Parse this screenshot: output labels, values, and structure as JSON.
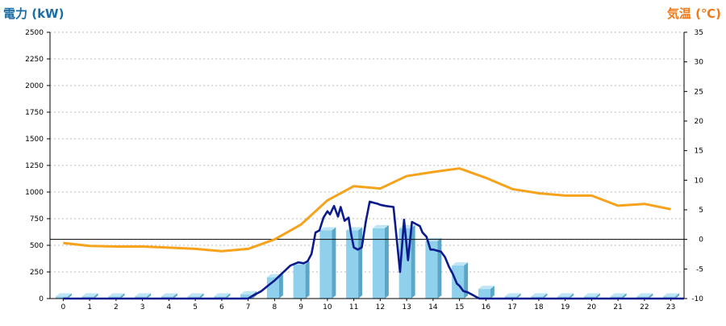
{
  "labels": {
    "left_axis_title": "電力 (kW)",
    "right_axis_title": "気温 (℃)"
  },
  "colors": {
    "left_title": "#1a6ea8",
    "right_title": "#f07a1a",
    "bar_front": "#8fd0ec",
    "bar_side": "#5aa6c8",
    "bar_top": "#bfe6f6",
    "power_line": "#0b1a8c",
    "temp_line": "#f7a21b",
    "grid": "#bbbbbb"
  },
  "chart_data": {
    "type": "bar",
    "categories": [
      "0",
      "1",
      "2",
      "3",
      "4",
      "5",
      "6",
      "7",
      "8",
      "9",
      "10",
      "11",
      "12",
      "13",
      "14",
      "15",
      "16",
      "17",
      "18",
      "19",
      "20",
      "21",
      "22",
      "23"
    ],
    "ylim_left": [
      0,
      2500
    ],
    "yticks_left": [
      0,
      250,
      500,
      750,
      1000,
      1250,
      1500,
      1750,
      2000,
      2250,
      2500
    ],
    "ylim_right": [
      -10,
      35
    ],
    "yticks_right": [
      -10,
      -5,
      0,
      5,
      10,
      15,
      20,
      25,
      30,
      35
    ],
    "grid": true,
    "zero_line_right": 0,
    "series": [
      {
        "kind": "bar",
        "axis": "left",
        "values": [
          20,
          20,
          20,
          20,
          20,
          20,
          20,
          40,
          200,
          320,
          640,
          640,
          660,
          660,
          540,
          310,
          90,
          20,
          20,
          20,
          20,
          20,
          20,
          20
        ]
      },
      {
        "kind": "line",
        "axis": "left",
        "x": [
          0,
          7,
          7.2,
          7.5,
          7.8,
          8,
          8.3,
          8.6,
          8.9,
          9.1,
          9.25,
          9.4,
          9.55,
          9.7,
          9.85,
          10,
          10.1,
          10.25,
          10.4,
          10.5,
          10.65,
          10.8,
          10.9,
          11,
          11.15,
          11.3,
          11.45,
          11.6,
          11.75,
          11.9,
          12,
          12.2,
          12.5,
          12.75,
          12.9,
          13.05,
          13.2,
          13.35,
          13.5,
          13.6,
          13.75,
          13.9,
          14,
          14.15,
          14.3,
          14.45,
          14.6,
          14.75,
          14.9,
          15,
          15.15,
          15.3,
          15.45,
          15.6,
          15.75,
          15.9,
          16,
          16.2,
          16.5,
          17,
          23.5
        ],
        "values": [
          0,
          0,
          30,
          70,
          130,
          170,
          240,
          310,
          340,
          330,
          350,
          420,
          620,
          640,
          760,
          820,
          790,
          870,
          770,
          860,
          730,
          760,
          600,
          480,
          460,
          480,
          720,
          910,
          900,
          890,
          880,
          870,
          860,
          250,
          740,
          360,
          720,
          700,
          680,
          620,
          580,
          460,
          460,
          450,
          440,
          390,
          300,
          230,
          140,
          120,
          70,
          60,
          40,
          20,
          0,
          0,
          0,
          0,
          0,
          0,
          0
        ]
      },
      {
        "kind": "line",
        "axis": "right",
        "x": [
          0,
          1,
          2,
          3,
          4,
          5,
          6,
          7,
          8,
          9,
          10,
          11,
          12,
          13,
          14,
          15,
          16,
          17,
          18,
          19,
          20,
          21,
          22,
          23
        ],
        "values": [
          -0.6,
          -1.1,
          -1.2,
          -1.2,
          -1.4,
          -1.6,
          -2.0,
          -1.6,
          0.0,
          2.5,
          6.6,
          9.0,
          8.6,
          10.7,
          11.4,
          12.0,
          10.4,
          8.5,
          7.8,
          7.4,
          7.4,
          5.7,
          6.0,
          5.1
        ]
      }
    ]
  }
}
